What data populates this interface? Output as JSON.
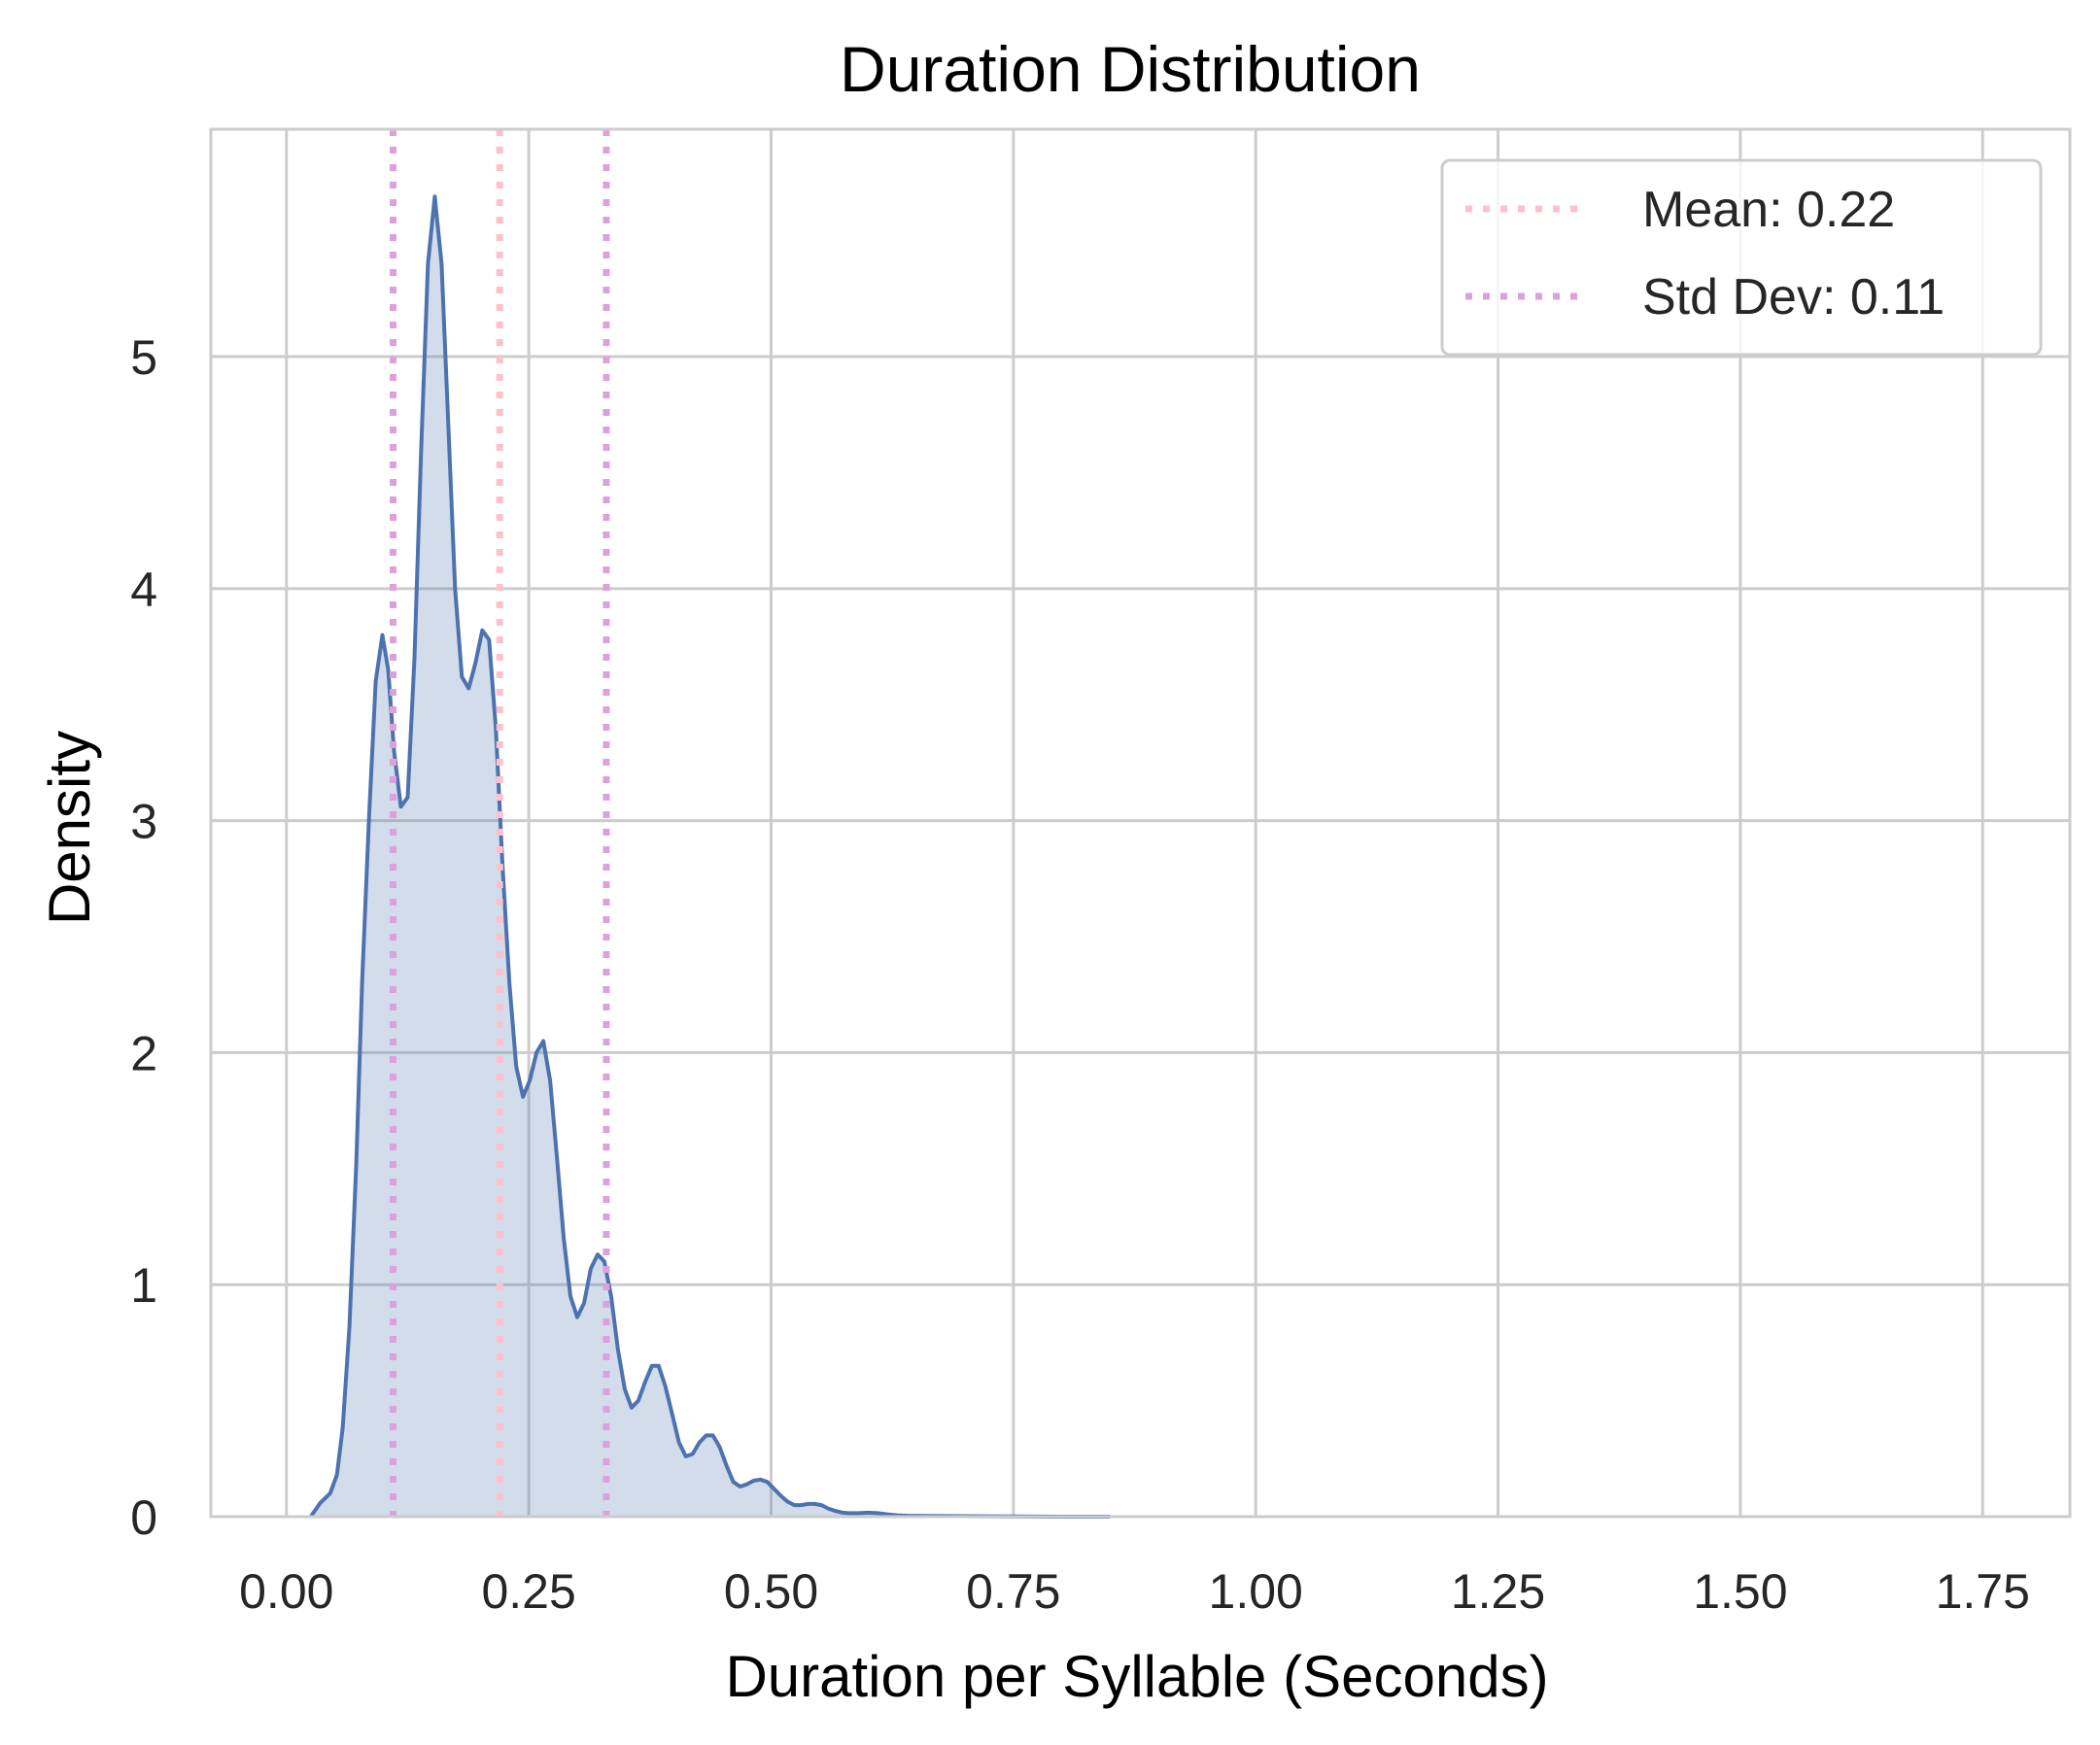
{
  "chart_data": {
    "type": "area",
    "title": "Duration Distribution",
    "xlabel": "Duration per Syllable (Seconds)",
    "ylabel": "Density",
    "xlim": [
      -0.078,
      1.84
    ],
    "ylim": [
      0,
      5.98
    ],
    "x_ticks": [
      0.0,
      0.25,
      0.5,
      0.75,
      1.0,
      1.25,
      1.5,
      1.75
    ],
    "x_tick_labels": [
      "0.00",
      "0.25",
      "0.50",
      "0.75",
      "1.00",
      "1.25",
      "1.50",
      "1.75"
    ],
    "y_ticks": [
      0,
      1,
      2,
      3,
      4,
      5
    ],
    "y_tick_labels": [
      "0",
      "1",
      "2",
      "3",
      "4",
      "5"
    ],
    "grid": true,
    "legend": {
      "placement": "top-right",
      "entries": [
        {
          "label": "Mean: 0.22",
          "color": "#ffc0cb",
          "style": "dotted"
        },
        {
          "label": "Std Dev: 0.11",
          "color": "#dda0dd",
          "style": "dotted"
        }
      ]
    },
    "reference_lines": [
      {
        "x": 0.22,
        "color": "#ffc0cb",
        "style": "dotted"
      },
      {
        "x": 0.11,
        "color": "#dda0dd",
        "style": "dotted"
      },
      {
        "x": 0.33,
        "color": "#dda0dd",
        "style": "dotted"
      }
    ],
    "series": [
      {
        "color": "#4c72b0",
        "fill": "#4c72b0",
        "points": [
          [
            0.025,
            0.0
          ],
          [
            0.035,
            0.06
          ],
          [
            0.045,
            0.1
          ],
          [
            0.052,
            0.18
          ],
          [
            0.058,
            0.38
          ],
          [
            0.065,
            0.82
          ],
          [
            0.072,
            1.52
          ],
          [
            0.078,
            2.3
          ],
          [
            0.085,
            3.0
          ],
          [
            0.092,
            3.6
          ],
          [
            0.099,
            3.8
          ],
          [
            0.105,
            3.65
          ],
          [
            0.111,
            3.3
          ],
          [
            0.118,
            3.06
          ],
          [
            0.125,
            3.1
          ],
          [
            0.132,
            3.7
          ],
          [
            0.139,
            4.6
          ],
          [
            0.146,
            5.4
          ],
          [
            0.153,
            5.69
          ],
          [
            0.16,
            5.4
          ],
          [
            0.167,
            4.7
          ],
          [
            0.174,
            4.0
          ],
          [
            0.181,
            3.62
          ],
          [
            0.188,
            3.57
          ],
          [
            0.195,
            3.68
          ],
          [
            0.202,
            3.82
          ],
          [
            0.209,
            3.78
          ],
          [
            0.216,
            3.4
          ],
          [
            0.223,
            2.8
          ],
          [
            0.23,
            2.3
          ],
          [
            0.237,
            1.94
          ],
          [
            0.244,
            1.81
          ],
          [
            0.251,
            1.88
          ],
          [
            0.258,
            2.0
          ],
          [
            0.265,
            2.05
          ],
          [
            0.272,
            1.88
          ],
          [
            0.279,
            1.55
          ],
          [
            0.286,
            1.2
          ],
          [
            0.293,
            0.95
          ],
          [
            0.3,
            0.86
          ],
          [
            0.307,
            0.92
          ],
          [
            0.314,
            1.07
          ],
          [
            0.321,
            1.13
          ],
          [
            0.328,
            1.1
          ],
          [
            0.335,
            0.95
          ],
          [
            0.342,
            0.72
          ],
          [
            0.349,
            0.55
          ],
          [
            0.356,
            0.47
          ],
          [
            0.363,
            0.5
          ],
          [
            0.37,
            0.58
          ],
          [
            0.377,
            0.65
          ],
          [
            0.384,
            0.65
          ],
          [
            0.391,
            0.56
          ],
          [
            0.398,
            0.44
          ],
          [
            0.405,
            0.32
          ],
          [
            0.412,
            0.26
          ],
          [
            0.419,
            0.27
          ],
          [
            0.426,
            0.32
          ],
          [
            0.433,
            0.35
          ],
          [
            0.44,
            0.35
          ],
          [
            0.447,
            0.3
          ],
          [
            0.454,
            0.22
          ],
          [
            0.461,
            0.15
          ],
          [
            0.468,
            0.13
          ],
          [
            0.475,
            0.14
          ],
          [
            0.482,
            0.155
          ],
          [
            0.489,
            0.16
          ],
          [
            0.496,
            0.15
          ],
          [
            0.503,
            0.12
          ],
          [
            0.51,
            0.09
          ],
          [
            0.517,
            0.065
          ],
          [
            0.524,
            0.05
          ],
          [
            0.531,
            0.05
          ],
          [
            0.538,
            0.055
          ],
          [
            0.545,
            0.055
          ],
          [
            0.552,
            0.05
          ],
          [
            0.559,
            0.035
          ],
          [
            0.566,
            0.025
          ],
          [
            0.573,
            0.018
          ],
          [
            0.58,
            0.015
          ],
          [
            0.59,
            0.015
          ],
          [
            0.6,
            0.017
          ],
          [
            0.61,
            0.015
          ],
          [
            0.62,
            0.01
          ],
          [
            0.63,
            0.006
          ],
          [
            0.64,
            0.004
          ],
          [
            0.66,
            0.003
          ],
          [
            0.7,
            0.002
          ],
          [
            0.75,
            0.001
          ],
          [
            0.8,
            0.0
          ],
          [
            0.85,
            0.0
          ]
        ]
      }
    ]
  }
}
